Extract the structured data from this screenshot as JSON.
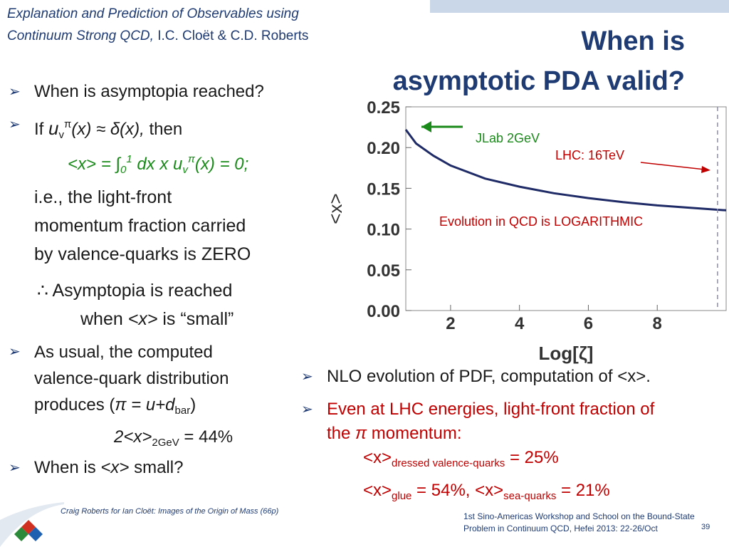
{
  "header": {
    "ref_line1": "Explanation and Prediction of Observables using",
    "ref_line2_italic": "Continuum Strong QCD,",
    "ref_line2_authors": " I.C. Cloët & C.D. Roberts",
    "title_line1": "When is",
    "title_line2": "asymptotic PDA valid?"
  },
  "left": {
    "b1": "When is asymptopia reached?",
    "b2_if": "If ",
    "b2_u": "u",
    "b2_v": "v",
    "b2_pi": "π",
    "b2_rest": "(x) ≈ δ(x),",
    "b2_then": " then",
    "eq_a": "<x> = ∫",
    "eq_0": "0",
    "eq_1": "1",
    "eq_b": " dx x u",
    "eq_v": "v",
    "eq_pi": "π",
    "eq_c": "(x) = 0;",
    "ie1": "i.e., the light-front",
    "ie2": "momentum fraction carried",
    "ie3": "by valence-quarks is ZERO",
    "therefore": "∴ Asymptopia is reached",
    "when_small_a": "when ",
    "when_small_x": "<x>",
    "when_small_b": " is “small”",
    "b3_l1": "As usual, the computed",
    "b3_l2": "valence-quark distribution",
    "b3_l3a": "produces (",
    "b3_l3b": "π = u+d",
    "b3_l3sub": "bar",
    "b3_l3c": ")",
    "two_x_a": "2<x>",
    "two_x_sub": "2GeV",
    "two_x_b": " = 44%",
    "b4a": "When is ",
    "b4x": "<x>",
    "b4b": " small?"
  },
  "right": {
    "r1": "NLO evolution of PDF, computation of <x>.",
    "r2_l1": "Even at LHC energies, light-front fraction of",
    "r2_l2a": "the ",
    "r2_l2pi": "π",
    "r2_l2b": " momentum:",
    "dv_a": "<x>",
    "dv_sub": "dressed valence-quarks",
    "dv_b": " = 25%",
    "g_a": "<x>",
    "g_sub": "glue",
    "g_b": " = 54%, <x>",
    "g_sub2": "sea-quarks",
    "g_c": " = 21%"
  },
  "chart_data": {
    "type": "line",
    "ylabel": "<x>",
    "xlabel": "Log[ζ]",
    "xlim": [
      0.7,
      10.0
    ],
    "ylim": [
      0.0,
      0.25
    ],
    "xticks": [
      "2",
      "4",
      "6",
      "8"
    ],
    "yticks": [
      "0.00",
      "0.05",
      "0.10",
      "0.15",
      "0.20",
      "0.25"
    ],
    "series": [
      {
        "x": [
          0.7,
          1.0,
          1.5,
          2.0,
          3.0,
          4.0,
          5.0,
          6.0,
          7.0,
          8.0,
          9.0,
          10.0
        ],
        "y": [
          0.222,
          0.205,
          0.19,
          0.178,
          0.162,
          0.152,
          0.144,
          0.138,
          0.133,
          0.129,
          0.126,
          0.123
        ]
      }
    ],
    "annotations": {
      "jlab": "JLab 2GeV",
      "lhc": "LHC: 16TeV",
      "evolution": "Evolution in QCD is LOGARITHMIC"
    },
    "colors": {
      "line": "#1f2b66",
      "green": "#1a8a1a",
      "red": "#c00000"
    }
  },
  "footer": {
    "left": "Craig Roberts for Ian Cloët: Images of the Origin of Mass (66p)",
    "right_l1": "1st Sino-Americas Workshop and School on the Bound-State",
    "right_l2": "Problem in Continuum QCD, Hefei 2013: 22-26/Oct",
    "page": "39"
  }
}
